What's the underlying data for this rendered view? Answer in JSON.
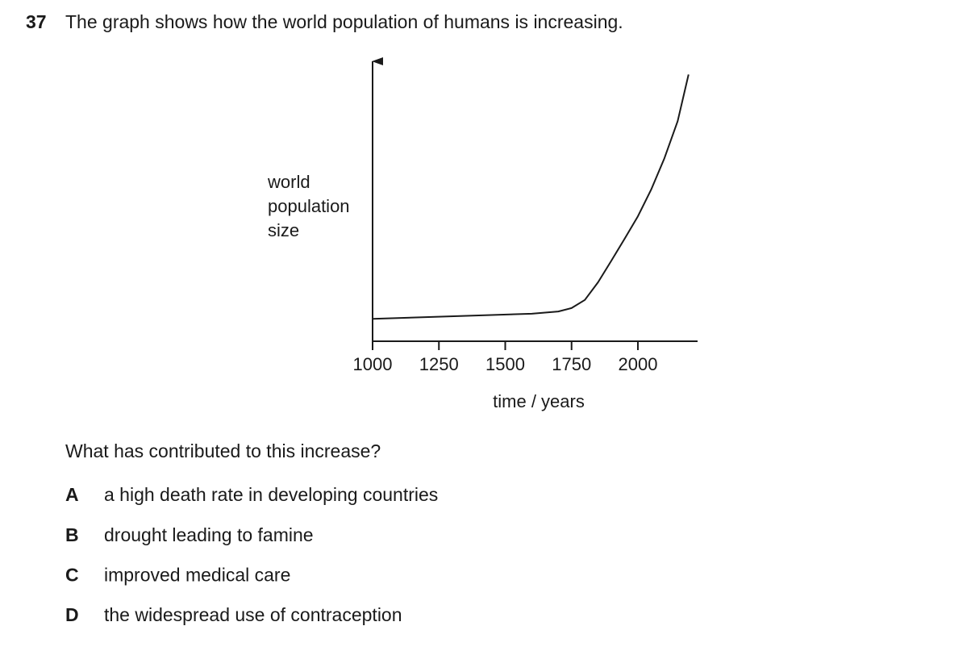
{
  "question_number": "37",
  "question": "The graph shows how the world population of humans is increasing.",
  "chart_data": {
    "type": "line",
    "y_label": [
      "world",
      "population",
      "size"
    ],
    "x_label": "time / years",
    "x": [
      1000,
      1200,
      1400,
      1600,
      1700,
      1750,
      1800,
      1850,
      1900,
      1950,
      2000,
      2050,
      2100,
      2150,
      2191
    ],
    "values": [
      8,
      8.6,
      9.2,
      9.8,
      10.6,
      11.8,
      14.7,
      21,
      28.7,
      36.5,
      44.5,
      54,
      65.2,
      78.4,
      95
    ],
    "color": "#1a1a1a",
    "xlim": [
      1000,
      2225
    ],
    "xticks": [
      1000,
      1250,
      1500,
      1750,
      2000
    ],
    "ylim": [
      0,
      100
    ]
  },
  "prompt": "What has contributed to this increase?",
  "options": [
    {
      "letter": "A",
      "text": "a high death rate in developing countries"
    },
    {
      "letter": "B",
      "text": "drought leading to famine"
    },
    {
      "letter": "C",
      "text": "improved medical care"
    },
    {
      "letter": "D",
      "text": "the widespread use of contraception"
    }
  ]
}
